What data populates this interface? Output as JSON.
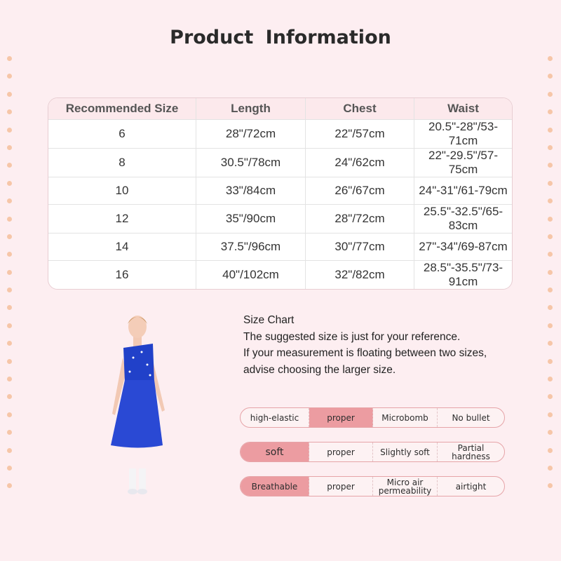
{
  "title": "Product  Information",
  "table": {
    "headers": [
      "Recommended Size",
      "Length",
      "Chest",
      "Waist"
    ],
    "rows": [
      [
        "6",
        "28\"/72cm",
        "22\"/57cm",
        "20.5\"-28\"/53-71cm"
      ],
      [
        "8",
        "30.5\"/78cm",
        "24\"/62cm",
        "22\"-29.5\"/57-75cm"
      ],
      [
        "10",
        "33\"/84cm",
        "26\"/67cm",
        "24\"-31\"/61-79cm"
      ],
      [
        "12",
        "35\"/90cm",
        "28\"/72cm",
        "25.5\"-32.5\"/65-83cm"
      ],
      [
        "14",
        "37.5\"/96cm",
        "30\"/77cm",
        "27\"-34\"/69-87cm"
      ],
      [
        "16",
        "40\"/102cm",
        "32\"/82cm",
        "28.5\"-35.5\"/73-91cm"
      ]
    ]
  },
  "info": [
    "Size Chart",
    "The suggested size is just for your reference.",
    "If your measurement is floating between two sizes,",
    "advise choosing the larger size."
  ],
  "features": [
    {
      "cells": [
        "high-elastic",
        "proper",
        "Microbomb",
        "No bullet"
      ],
      "highlight": 1
    },
    {
      "cells": [
        "soft",
        "proper",
        "Slightly soft",
        "Partial hardness"
      ],
      "highlight": 0
    },
    {
      "cells": [
        "Breathable",
        "proper",
        "Micro air permeability",
        "airtight"
      ],
      "highlight": 0
    }
  ],
  "colors": {
    "background": "#fdeef1",
    "highlight": "#ec9ca1",
    "dress": "#1f3fc4"
  }
}
